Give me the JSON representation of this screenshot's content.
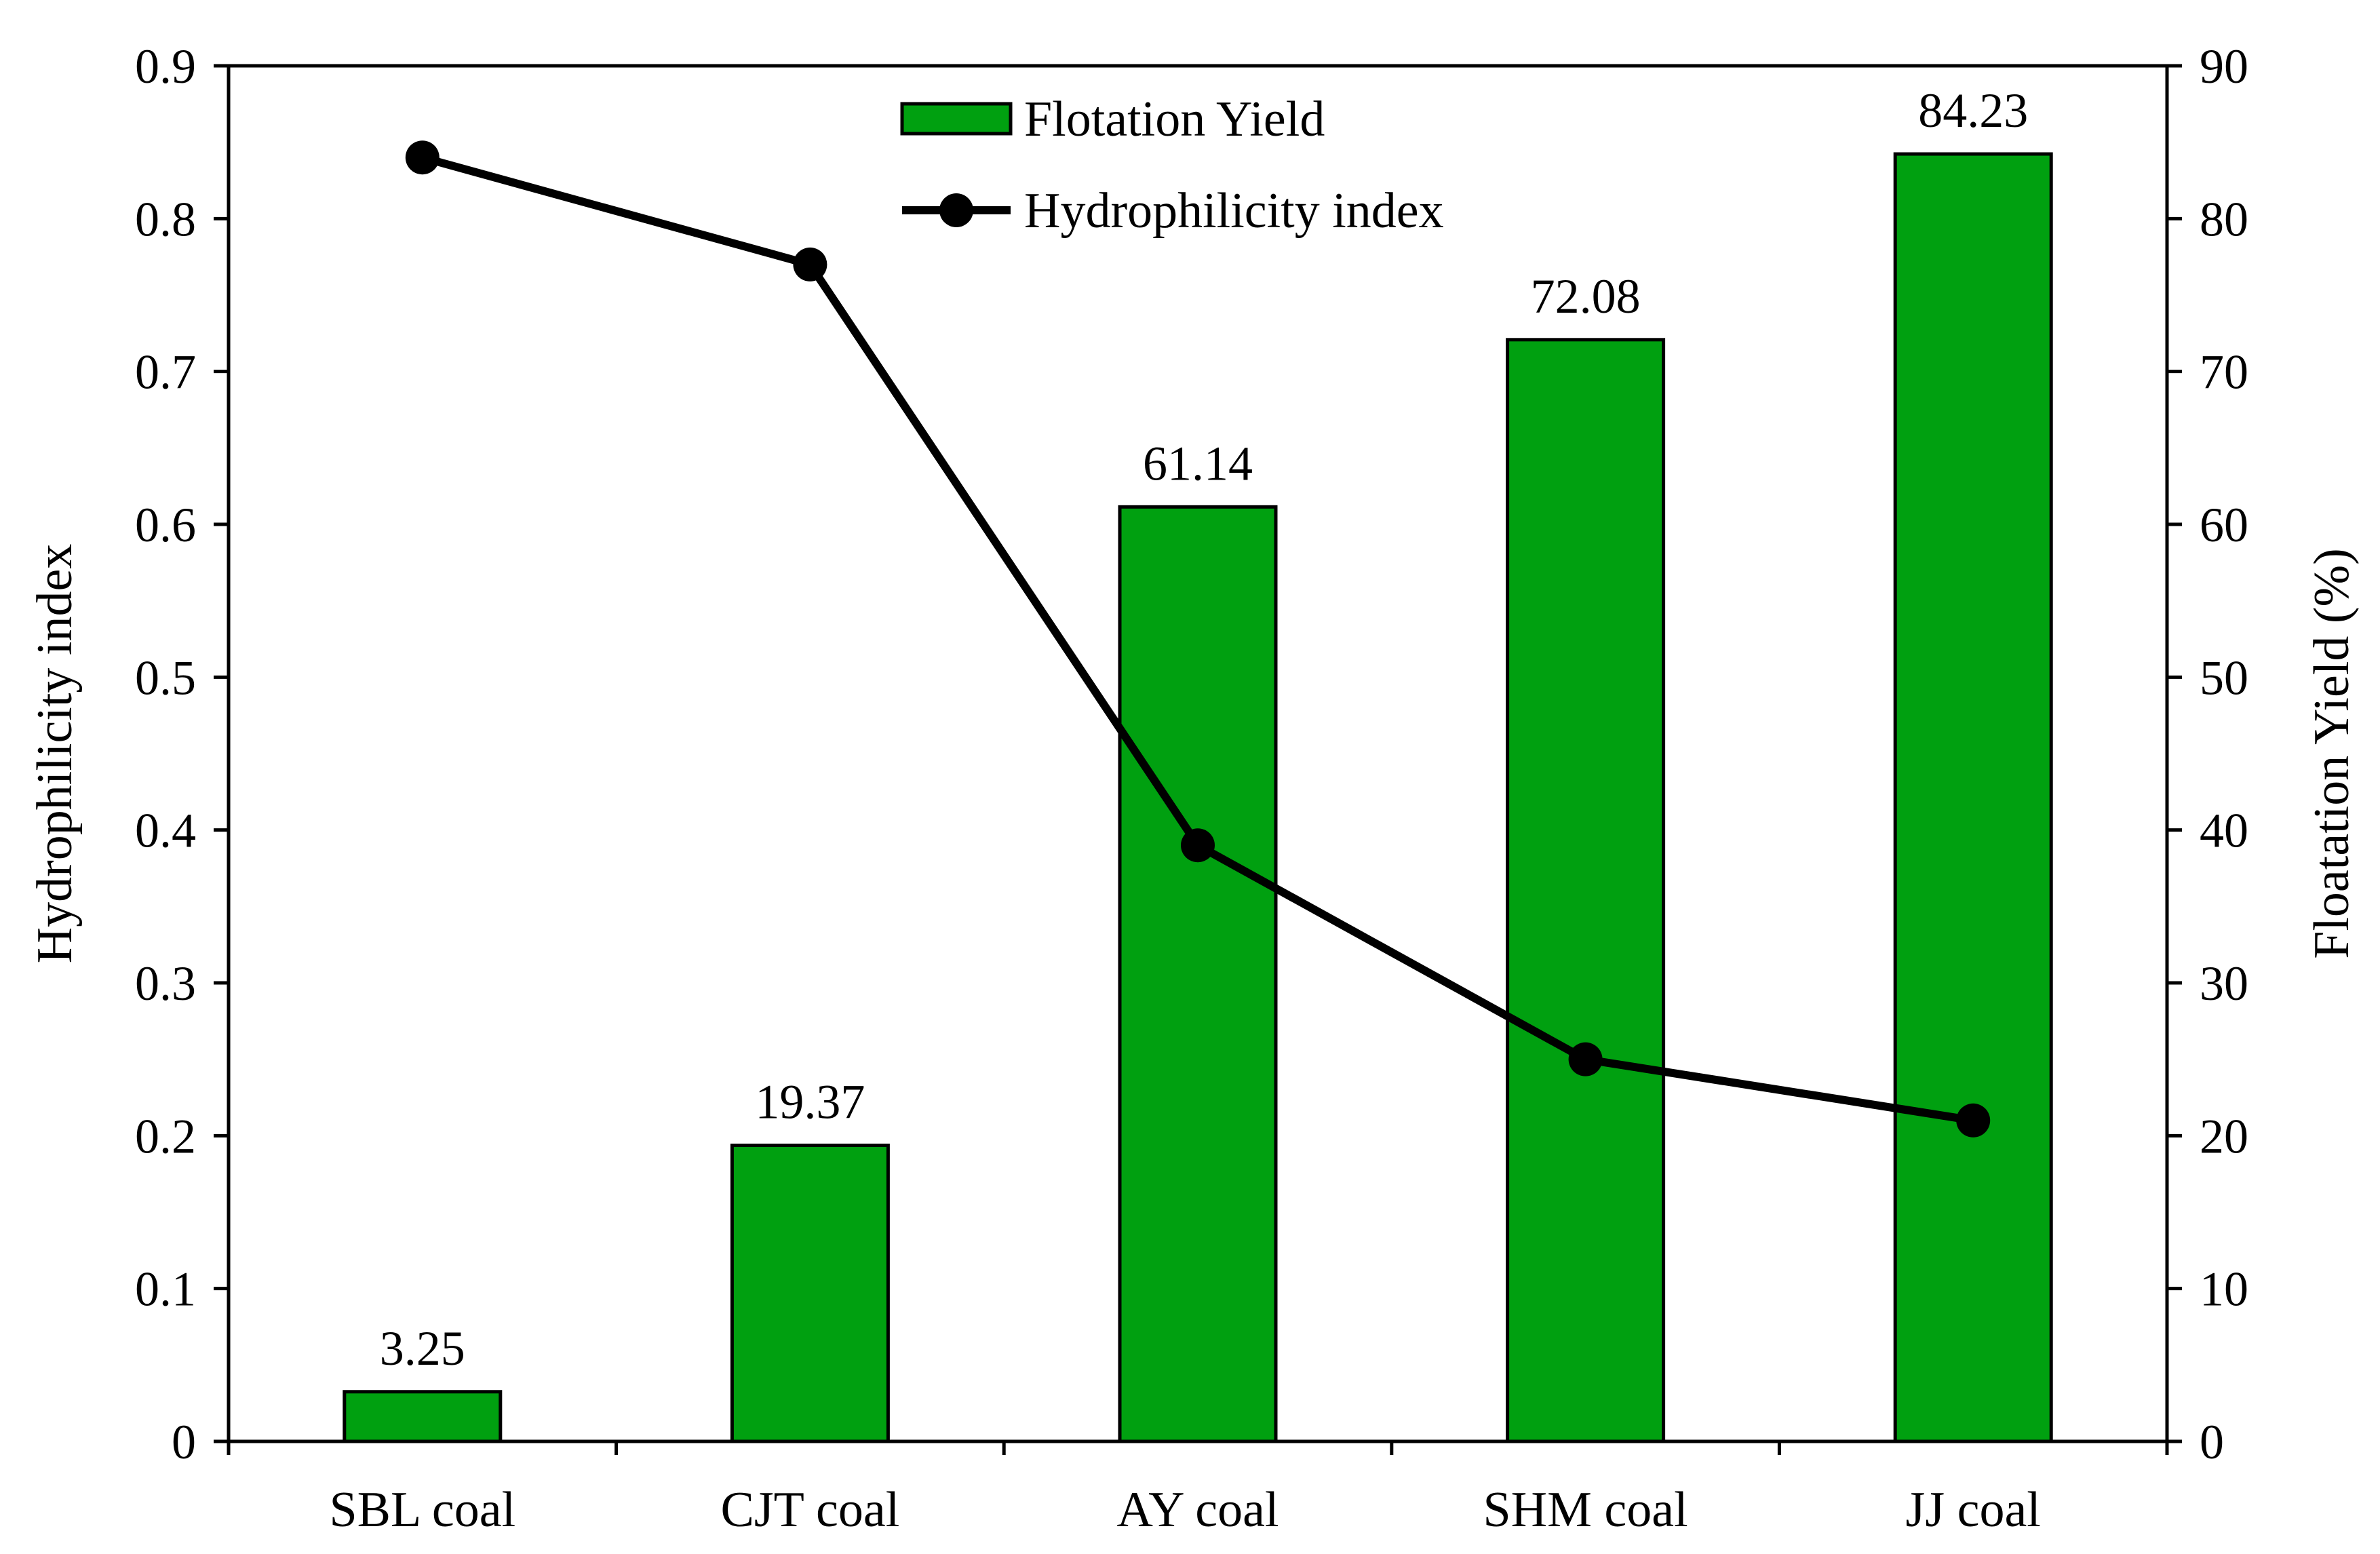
{
  "chart_data": {
    "type": "bar+line",
    "title": "",
    "categories": [
      "SBL coal",
      "CJT coal",
      "AY coal",
      "SHM coal",
      "JJ coal"
    ],
    "series": [
      {
        "name": "Flotation Yield",
        "kind": "bar",
        "axis": "right",
        "values": [
          3.25,
          19.37,
          61.14,
          72.08,
          84.23
        ],
        "labels": [
          "3.25",
          "19.37",
          "61.14",
          "72.08",
          "84.23"
        ],
        "color": "#00A010"
      },
      {
        "name": "Hydrophilicity index",
        "kind": "line",
        "axis": "left",
        "values": [
          0.84,
          0.77,
          0.39,
          0.25,
          0.21
        ],
        "color": "#000000"
      }
    ],
    "y_left": {
      "label": "Hydrophilicity index",
      "min": 0,
      "max": 0.9,
      "step": 0.1,
      "ticks": [
        "0",
        "0.1",
        "0.2",
        "0.3",
        "0.4",
        "0.5",
        "0.6",
        "0.7",
        "0.8",
        "0.9"
      ]
    },
    "y_right": {
      "label": "Floatation Yield (%)",
      "min": 0,
      "max": 90,
      "step": 10,
      "ticks": [
        "0",
        "10",
        "20",
        "30",
        "40",
        "50",
        "60",
        "70",
        "80",
        "90"
      ]
    },
    "xlabel": "",
    "grid": false,
    "legend_position": "top-center",
    "colors": {
      "bar_fill": "#00A010",
      "bar_stroke": "#000000",
      "line": "#000000",
      "axis": "#000000"
    }
  }
}
